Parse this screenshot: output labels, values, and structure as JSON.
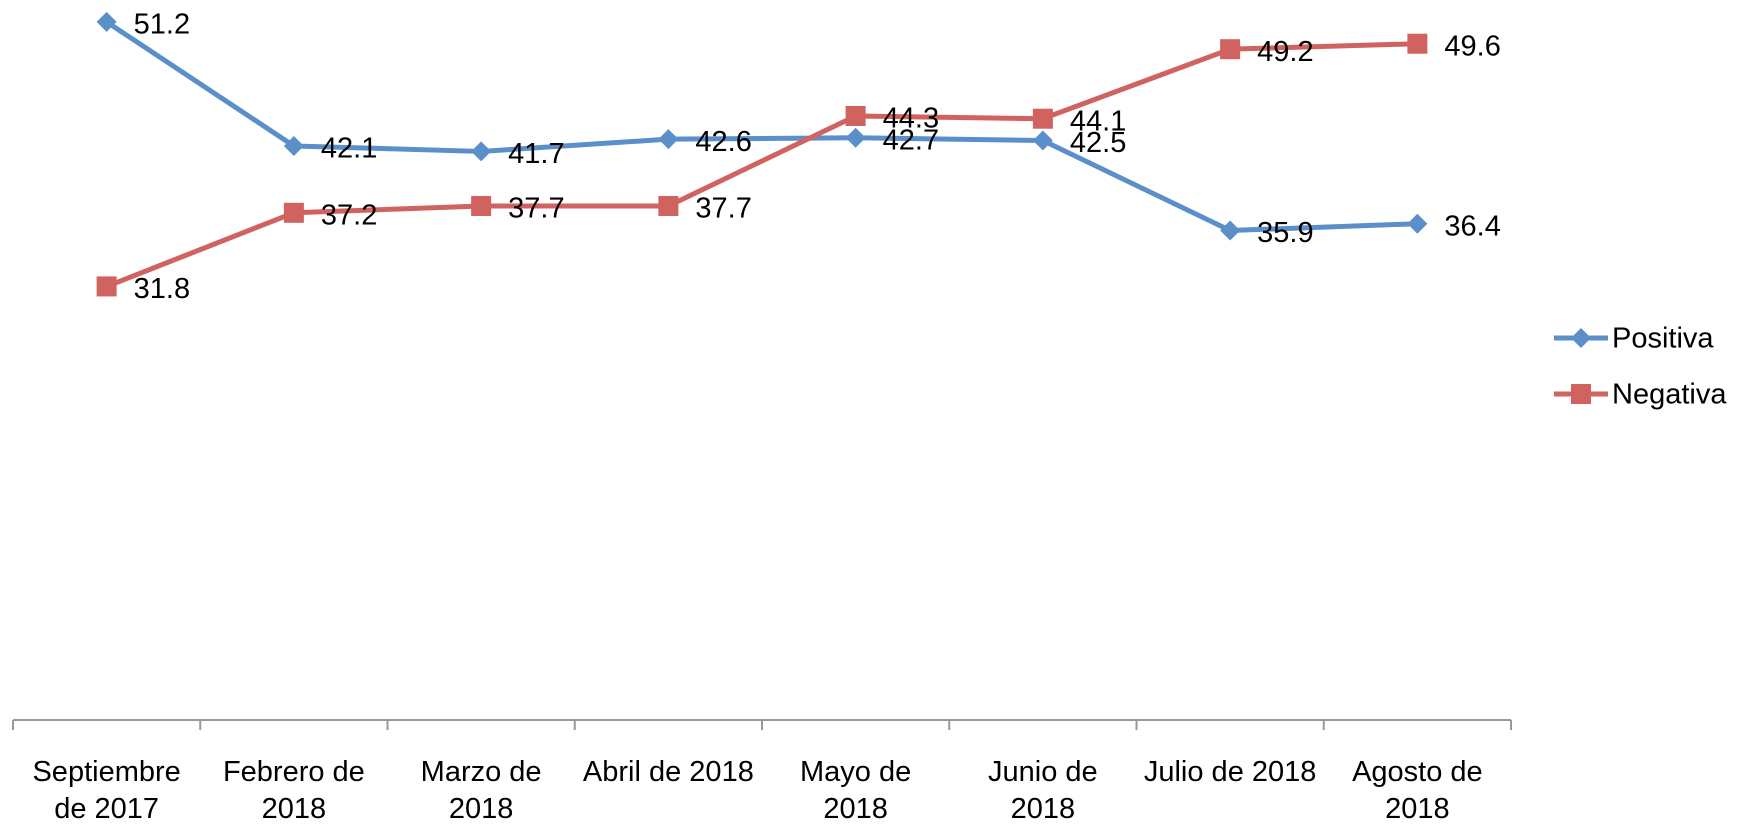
{
  "chart_data": {
    "type": "line",
    "categories": [
      "Septiembre de 2017",
      "Febrero de 2018",
      "Marzo de 2018",
      "Abril de 2018",
      "Mayo de 2018",
      "Junio de 2018",
      "Julio de 2018",
      "Agosto de 2018"
    ],
    "series": [
      {
        "name": "Positiva",
        "color": "#5b8fc9",
        "marker": "diamond",
        "values": [
          51.2,
          42.1,
          41.7,
          42.6,
          42.7,
          42.5,
          35.9,
          36.4
        ]
      },
      {
        "name": "Negativa",
        "color": "#d0625f",
        "marker": "square",
        "values": [
          31.8,
          37.2,
          37.7,
          37.7,
          44.3,
          44.1,
          49.2,
          49.6
        ]
      }
    ],
    "ylim": [
      0,
      52
    ],
    "legend": "right",
    "data_labels": true
  }
}
